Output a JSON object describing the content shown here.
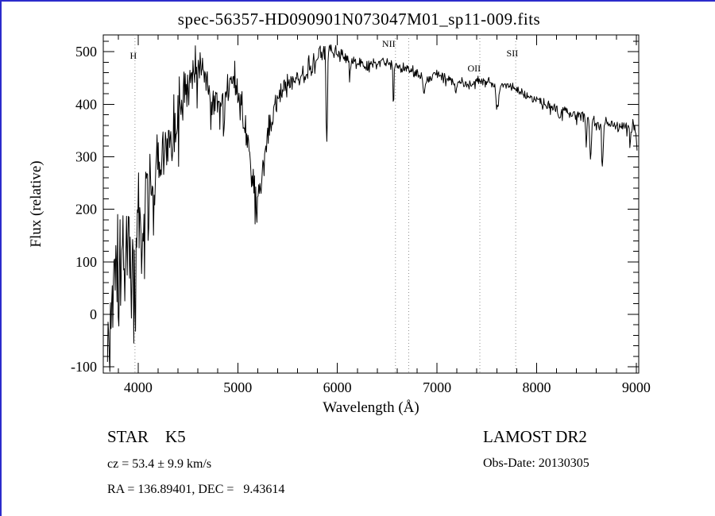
{
  "window": {
    "frame_color": "#2b2bcc",
    "background": "#ffffff"
  },
  "chart_data": {
    "type": "line",
    "title": "spec-56357-HD090901N073047M01_sp11-009.fits",
    "xlabel": "Wavelength (Å)",
    "ylabel": "Flux (relative)",
    "xlim": [
      3650,
      9025
    ],
    "ylim": [
      -112,
      532
    ],
    "x_ticks": [
      4000,
      5000,
      6000,
      7000,
      8000,
      9000
    ],
    "y_ticks": [
      -100,
      0,
      100,
      200,
      300,
      400,
      500
    ],
    "x_minor_step": 200,
    "y_minor_step": 20,
    "grid": false,
    "legend": "none",
    "line_color": "#000000",
    "marker_line_color": "#909090",
    "spectral_lines": [
      {
        "wl": 3968,
        "label": "H",
        "label_wl": 3952,
        "label_dy": 30
      },
      {
        "wl": 6583,
        "label": "NII",
        "label_wl": 6515,
        "label_dy": 15
      },
      {
        "wl": 6716,
        "label": "",
        "label_wl": 6716,
        "label_dy": 15
      },
      {
        "wl": 7430,
        "label": "OII",
        "label_wl": 7373,
        "label_dy": 46
      },
      {
        "wl": 7790,
        "label": "SII",
        "label_wl": 7756,
        "label_dy": 27
      }
    ],
    "spectrum": {
      "range": [
        3692,
        9012
      ],
      "step": 6,
      "seed": 20130305,
      "anchors": [
        [
          3692,
          -30
        ],
        [
          3720,
          -50
        ],
        [
          3750,
          20
        ],
        [
          3780,
          70
        ],
        [
          3810,
          55
        ],
        [
          3840,
          110
        ],
        [
          3870,
          95
        ],
        [
          3900,
          160
        ],
        [
          3930,
          115
        ],
        [
          3960,
          140
        ],
        [
          4000,
          195
        ],
        [
          4040,
          170
        ],
        [
          4080,
          240
        ],
        [
          4120,
          255
        ],
        [
          4160,
          225
        ],
        [
          4200,
          285
        ],
        [
          4250,
          315
        ],
        [
          4300,
          305
        ],
        [
          4350,
          365
        ],
        [
          4400,
          390
        ],
        [
          4450,
          420
        ],
        [
          4500,
          440
        ],
        [
          4550,
          458
        ],
        [
          4600,
          465
        ],
        [
          4650,
          468
        ],
        [
          4700,
          450
        ],
        [
          4740,
          400
        ],
        [
          4780,
          420
        ],
        [
          4820,
          395
        ],
        [
          4860,
          410
        ],
        [
          4900,
          435
        ],
        [
          4950,
          445
        ],
        [
          5000,
          425
        ],
        [
          5050,
          390
        ],
        [
          5100,
          330
        ],
        [
          5150,
          250
        ],
        [
          5190,
          210
        ],
        [
          5230,
          235
        ],
        [
          5270,
          300
        ],
        [
          5310,
          345
        ],
        [
          5360,
          390
        ],
        [
          5410,
          420
        ],
        [
          5460,
          432
        ],
        [
          5510,
          445
        ],
        [
          5560,
          440
        ],
        [
          5610,
          455
        ],
        [
          5660,
          462
        ],
        [
          5710,
          470
        ],
        [
          5760,
          480
        ],
        [
          5810,
          492
        ],
        [
          5860,
          502
        ],
        [
          5910,
          508
        ],
        [
          5960,
          500
        ],
        [
          6010,
          494
        ],
        [
          6060,
          490
        ],
        [
          6110,
          486
        ],
        [
          6160,
          482
        ],
        [
          6210,
          478
        ],
        [
          6260,
          475
        ],
        [
          6310,
          472
        ],
        [
          6360,
          475
        ],
        [
          6410,
          478
        ],
        [
          6460,
          480
        ],
        [
          6510,
          478
        ],
        [
          6560,
          474
        ],
        [
          6610,
          470
        ],
        [
          6660,
          468
        ],
        [
          6710,
          464
        ],
        [
          6760,
          461
        ],
        [
          6810,
          459
        ],
        [
          6860,
          450
        ],
        [
          6910,
          447
        ],
        [
          6960,
          455
        ],
        [
          7010,
          457
        ],
        [
          7060,
          454
        ],
        [
          7110,
          450
        ],
        [
          7160,
          448
        ],
        [
          7210,
          445
        ],
        [
          7260,
          442
        ],
        [
          7310,
          438
        ],
        [
          7360,
          441
        ],
        [
          7410,
          445
        ],
        [
          7460,
          447
        ],
        [
          7510,
          444
        ],
        [
          7560,
          439
        ],
        [
          7610,
          428
        ],
        [
          7660,
          436
        ],
        [
          7710,
          437
        ],
        [
          7760,
          431
        ],
        [
          7810,
          427
        ],
        [
          7860,
          420
        ],
        [
          7910,
          415
        ],
        [
          7960,
          411
        ],
        [
          8010,
          408
        ],
        [
          8060,
          404
        ],
        [
          8110,
          399
        ],
        [
          8160,
          394
        ],
        [
          8210,
          390
        ],
        [
          8260,
          388
        ],
        [
          8310,
          385
        ],
        [
          8360,
          382
        ],
        [
          8410,
          380
        ],
        [
          8460,
          377
        ],
        [
          8510,
          371
        ],
        [
          8560,
          366
        ],
        [
          8610,
          362
        ],
        [
          8660,
          360
        ],
        [
          8710,
          365
        ],
        [
          8760,
          362
        ],
        [
          8810,
          359
        ],
        [
          8860,
          358
        ],
        [
          8910,
          360
        ],
        [
          8960,
          357
        ],
        [
          8990,
          354
        ],
        [
          9005,
          330
        ],
        [
          9012,
          302
        ]
      ],
      "noise": [
        [
          3692,
          120
        ],
        [
          3750,
          120
        ],
        [
          3800,
          110
        ],
        [
          3900,
          95
        ],
        [
          4000,
          85
        ],
        [
          4100,
          75
        ],
        [
          4200,
          68
        ],
        [
          4300,
          60
        ],
        [
          4400,
          54
        ],
        [
          4500,
          46
        ],
        [
          4600,
          40
        ],
        [
          4800,
          38
        ],
        [
          5000,
          34
        ],
        [
          5200,
          38
        ],
        [
          5400,
          27
        ],
        [
          5600,
          22
        ],
        [
          5800,
          19
        ],
        [
          6000,
          17
        ],
        [
          6300,
          14
        ],
        [
          6600,
          12
        ],
        [
          7000,
          11
        ],
        [
          7500,
          10
        ],
        [
          8000,
          10
        ],
        [
          8500,
          11
        ],
        [
          9000,
          12
        ]
      ],
      "dips": [
        [
          3934,
          90,
          7
        ],
        [
          3970,
          90,
          7
        ],
        [
          4101,
          70,
          6
        ],
        [
          4227,
          50,
          5
        ],
        [
          4340,
          60,
          6
        ],
        [
          4383,
          45,
          5
        ],
        [
          4861,
          55,
          6
        ],
        [
          5893,
          185,
          7
        ],
        [
          6122,
          40,
          5
        ],
        [
          6563,
          75,
          5
        ],
        [
          6870,
          32,
          9
        ],
        [
          7190,
          22,
          10
        ],
        [
          7605,
          38,
          12
        ],
        [
          8230,
          22,
          10
        ],
        [
          8498,
          45,
          6
        ],
        [
          8542,
          85,
          7
        ],
        [
          8662,
          75,
          7
        ],
        [
          8940,
          25,
          8
        ]
      ]
    }
  },
  "footer": {
    "class_line": "STAR    K5",
    "survey": "LAMOST DR2",
    "cz_line": "cz = 53.4 ± 9.9 km/s",
    "obs_date": "Obs-Date: 20130305",
    "radec_line": "RA = 136.89401, DEC =   9.43614"
  }
}
